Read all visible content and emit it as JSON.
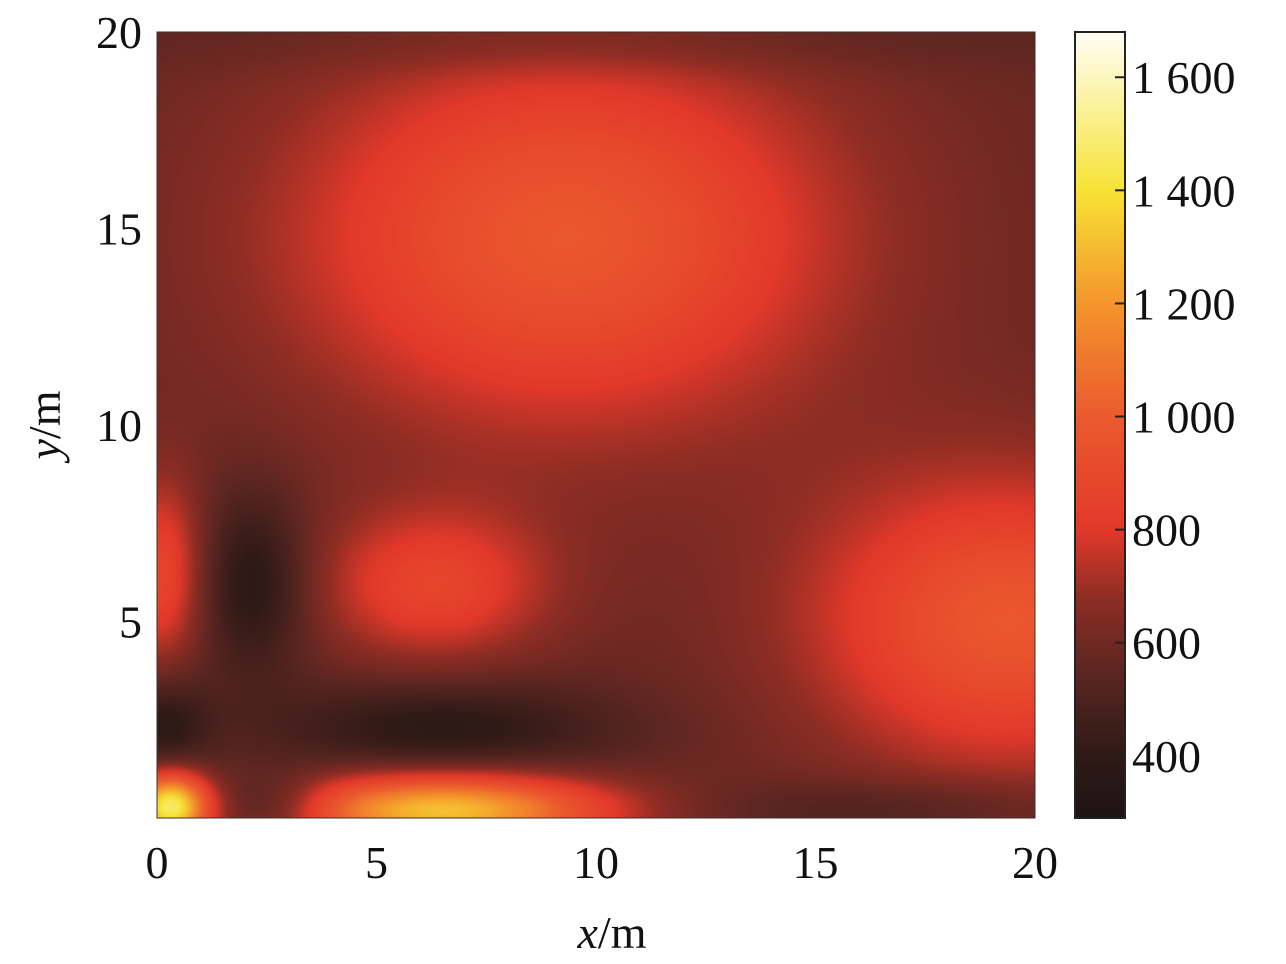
{
  "chart_data": {
    "type": "heatmap",
    "title": "",
    "xlabel": "",
    "ylabel": "",
    "xlabel_var": "x",
    "xlabel_unit": "/m",
    "ylabel_var": "y",
    "ylabel_unit": "/m",
    "xlim": [
      0,
      20
    ],
    "ylim": [
      0,
      20
    ],
    "x_ticks": [
      0,
      5,
      10,
      15,
      20
    ],
    "y_ticks": [
      5,
      10,
      15,
      20
    ],
    "x_tick_labels": [
      "0",
      "5",
      "10",
      "15",
      "20"
    ],
    "y_tick_labels": [
      "5",
      "10",
      "15",
      "20"
    ],
    "colorbar": {
      "range": [
        290,
        1680
      ],
      "ticks": [
        400,
        600,
        800,
        1000,
        1200,
        1400,
        1600
      ],
      "tick_labels": [
        "400",
        "600",
        "800",
        "1 000",
        "1 200",
        "1 400",
        "1 600"
      ],
      "colormap": "hot",
      "stops": [
        {
          "value": 290,
          "color": "#1e1414"
        },
        {
          "value": 400,
          "color": "#2f1a16"
        },
        {
          "value": 550,
          "color": "#5c2621"
        },
        {
          "value": 680,
          "color": "#8e2d24"
        },
        {
          "value": 800,
          "color": "#e2392a"
        },
        {
          "value": 1000,
          "color": "#eb5a2e"
        },
        {
          "value": 1200,
          "color": "#f4952b"
        },
        {
          "value": 1400,
          "color": "#f6e335"
        },
        {
          "value": 1680,
          "color": "#fffef5"
        }
      ]
    },
    "grid": false,
    "background_value": 575,
    "regions": [
      {
        "x": 9.3,
        "y": 14.8,
        "peak": 975,
        "sx": 4.6,
        "sy": 3.6
      },
      {
        "x": 6.3,
        "y": 5.9,
        "peak": 860,
        "sx": 1.9,
        "sy": 1.4
      },
      {
        "x": 19.4,
        "y": 5.0,
        "peak": 975,
        "sx": 3.3,
        "sy": 2.7
      },
      {
        "x": 0.1,
        "y": 6.2,
        "peak": 880,
        "sx": 0.7,
        "sy": 1.7
      },
      {
        "x": 6.5,
        "y": 0.2,
        "peak": 1320,
        "sx": 2.6,
        "sy": 0.65
      },
      {
        "x": 0.3,
        "y": 0.3,
        "peak": 1450,
        "sx": 0.6,
        "sy": 0.6
      },
      {
        "x": 2.2,
        "y": 6.0,
        "peak": 350,
        "sx": 0.9,
        "sy": 1.6
      },
      {
        "x": 6.5,
        "y": 2.3,
        "peak": 370,
        "sx": 2.7,
        "sy": 0.85
      },
      {
        "x": 0.2,
        "y": 2.4,
        "peak": 380,
        "sx": 0.7,
        "sy": 0.9
      },
      {
        "x": 2.7,
        "y": 0.3,
        "peak": 360,
        "sx": 0.9,
        "sy": 0.55
      },
      {
        "x": 17.0,
        "y": 0.3,
        "peak": 470,
        "sx": 3.0,
        "sy": 0.5
      },
      {
        "x": 10.0,
        "y": 19.8,
        "peak": 500,
        "sx": 7.0,
        "sy": 0.6
      }
    ]
  }
}
